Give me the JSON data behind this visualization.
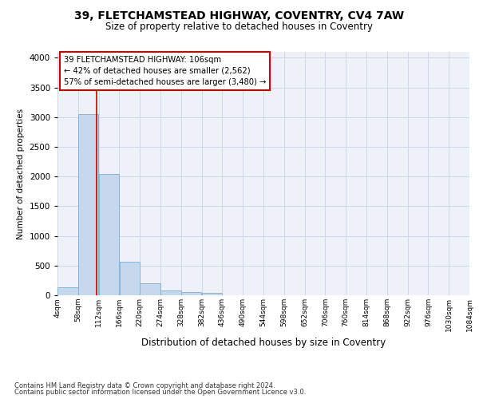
{
  "title": "39, FLETCHAMSTEAD HIGHWAY, COVENTRY, CV4 7AW",
  "subtitle": "Size of property relative to detached houses in Coventry",
  "xlabel": "Distribution of detached houses by size in Coventry",
  "ylabel": "Number of detached properties",
  "footer_line1": "Contains HM Land Registry data © Crown copyright and database right 2024.",
  "footer_line2": "Contains public sector information licensed under the Open Government Licence v3.0.",
  "annotation_line1": "39 FLETCHAMSTEAD HIGHWAY: 106sqm",
  "annotation_line2": "← 42% of detached houses are smaller (2,562)",
  "annotation_line3": "57% of semi-detached houses are larger (3,480) →",
  "property_size": 106,
  "bin_edges": [
    4,
    58,
    112,
    166,
    220,
    274,
    328,
    382,
    436,
    490,
    544,
    598,
    652,
    706,
    760,
    814,
    868,
    922,
    976,
    1030,
    1084
  ],
  "bar_heights": [
    130,
    3050,
    2050,
    560,
    195,
    75,
    55,
    45,
    0,
    0,
    0,
    0,
    0,
    0,
    0,
    0,
    0,
    0,
    0,
    0
  ],
  "bar_color": "#c5d8ed",
  "bar_edge_color": "#7bafd4",
  "red_line_color": "#cc0000",
  "grid_color": "#d0d8e8",
  "background_color": "#eef2f8",
  "ylim": [
    0,
    4100
  ],
  "yticks": [
    0,
    500,
    1000,
    1500,
    2000,
    2500,
    3000,
    3500,
    4000
  ]
}
